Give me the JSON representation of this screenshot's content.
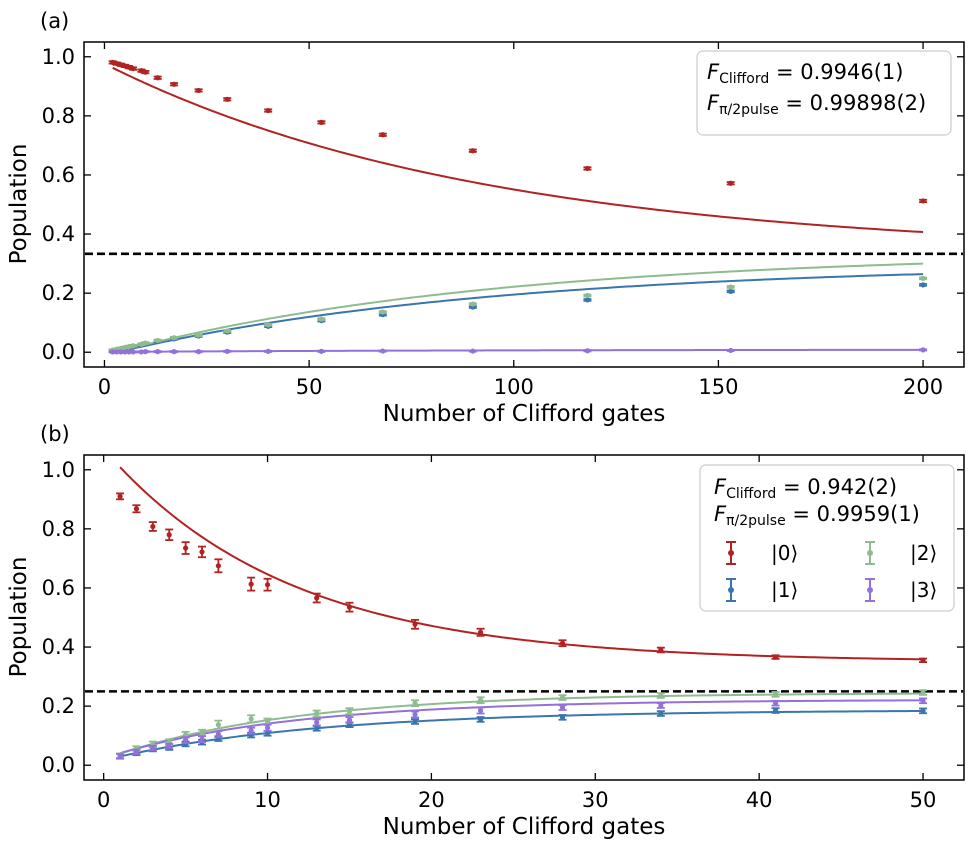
{
  "chart_data": [
    {
      "type": "scatter",
      "panel_label": "(a)",
      "xlabel": "Number of Clifford gates",
      "ylabel": "Population",
      "xlim": [
        -5,
        210
      ],
      "ylim": [
        -0.05,
        1.05
      ],
      "xticks": [
        0,
        50,
        100,
        150,
        200
      ],
      "xtick_labels": [
        "0",
        "50",
        "100",
        "150",
        "200"
      ],
      "yticks": [
        0.0,
        0.2,
        0.4,
        0.6,
        0.8,
        1.0
      ],
      "ytick_labels": [
        "0.0",
        "0.2",
        "0.4",
        "0.6",
        "0.8",
        "1.0"
      ],
      "dashed_line_y": 0.333,
      "fidelity": {
        "clifford_sym": "F",
        "clifford_sub": "Clifford",
        "clifford_value": " = 0.9946(1)",
        "pulse_sym": "F",
        "pulse_sub": "π/2pulse",
        "pulse_value": " = 0.99898(2)"
      },
      "x": [
        2,
        3,
        4,
        5,
        6,
        7,
        9,
        10,
        13,
        17,
        23,
        30,
        40,
        53,
        68,
        90,
        118,
        153,
        200
      ],
      "series": [
        {
          "name": "|0⟩",
          "color": "#b22222",
          "fit_a": 0.6434,
          "fit_p": 0.98923,
          "fit_b": 0.333,
          "values": [
            0.981,
            0.977,
            0.973,
            0.969,
            0.965,
            0.96,
            0.953,
            0.948,
            0.929,
            0.907,
            0.886,
            0.856,
            0.818,
            0.778,
            0.736,
            0.682,
            0.622,
            0.572,
            0.512
          ],
          "errors": [
            0.004,
            0.004,
            0.004,
            0.004,
            0.004,
            0.004,
            0.004,
            0.004,
            0.004,
            0.004,
            0.004,
            0.004,
            0.004,
            0.004,
            0.004,
            0.004,
            0.004,
            0.004,
            0.004
          ]
        },
        {
          "name": "|1⟩",
          "color": "#3a75ae",
          "fit_a": -0.31,
          "fit_p": 0.98923,
          "fit_b": 0.3,
          "values": [
            0.006,
            0.009,
            0.011,
            0.014,
            0.017,
            0.02,
            0.024,
            0.028,
            0.036,
            0.045,
            0.055,
            0.068,
            0.088,
            0.107,
            0.127,
            0.153,
            0.177,
            0.206,
            0.228
          ],
          "errors": [
            0.003,
            0.003,
            0.003,
            0.003,
            0.003,
            0.003,
            0.003,
            0.003,
            0.003,
            0.003,
            0.003,
            0.003,
            0.003,
            0.003,
            0.003,
            0.003,
            0.003,
            0.003,
            0.003
          ]
        },
        {
          "name": "|2⟩",
          "color": "#8fbc8f",
          "fit_a": -0.35,
          "fit_p": 0.98923,
          "fit_b": 0.34,
          "values": [
            0.007,
            0.01,
            0.013,
            0.016,
            0.019,
            0.022,
            0.027,
            0.031,
            0.04,
            0.049,
            0.058,
            0.072,
            0.093,
            0.112,
            0.136,
            0.163,
            0.192,
            0.221,
            0.25
          ],
          "errors": [
            0.003,
            0.003,
            0.003,
            0.003,
            0.003,
            0.003,
            0.003,
            0.003,
            0.003,
            0.003,
            0.003,
            0.003,
            0.003,
            0.003,
            0.003,
            0.003,
            0.003,
            0.003,
            0.003
          ]
        },
        {
          "name": "|3⟩",
          "color": "#9370db",
          "fit_a": -0.008,
          "fit_p": 0.98923,
          "fit_b": 0.009,
          "values": [
            0.001,
            0.001,
            0.001,
            0.001,
            0.001,
            0.001,
            0.001,
            0.002,
            0.002,
            0.002,
            0.002,
            0.003,
            0.003,
            0.003,
            0.004,
            0.004,
            0.005,
            0.006,
            0.008
          ],
          "errors": [
            0.002,
            0.002,
            0.002,
            0.002,
            0.002,
            0.002,
            0.002,
            0.002,
            0.002,
            0.002,
            0.002,
            0.002,
            0.002,
            0.002,
            0.002,
            0.002,
            0.002,
            0.002,
            0.002
          ]
        }
      ]
    },
    {
      "type": "scatter",
      "panel_label": "(b)",
      "xlabel": "Number of Clifford gates",
      "ylabel": "Population",
      "xlim": [
        -1.2,
        52.5
      ],
      "ylim": [
        -0.05,
        1.05
      ],
      "xticks": [
        0,
        10,
        20,
        30,
        40,
        50
      ],
      "xtick_labels": [
        "0",
        "10",
        "20",
        "30",
        "40",
        "50"
      ],
      "yticks": [
        0.0,
        0.2,
        0.4,
        0.6,
        0.8,
        1.0
      ],
      "ytick_labels": [
        "0.0",
        "0.2",
        "0.4",
        "0.6",
        "0.8",
        "1.0"
      ],
      "dashed_line_y": 0.25,
      "fidelity": {
        "clifford_sym": "F",
        "clifford_sub": "Clifford",
        "clifford_value": " = 0.942(2)",
        "pulse_sym": "F",
        "pulse_sub": "π/2pulse",
        "pulse_value": " = 0.9959(1)"
      },
      "x": [
        1,
        2,
        3,
        4,
        5,
        6,
        7,
        9,
        10,
        13,
        15,
        19,
        23,
        28,
        34,
        41,
        50
      ],
      "series": [
        {
          "name": "|0⟩",
          "color": "#b22222",
          "fit_a": 0.72,
          "fit_p": 0.915,
          "fit_b": 0.35,
          "values": [
            0.91,
            0.868,
            0.808,
            0.78,
            0.735,
            0.722,
            0.675,
            0.613,
            0.611,
            0.566,
            0.535,
            0.477,
            0.45,
            0.413,
            0.39,
            0.366,
            0.355
          ],
          "errors": [
            0.01,
            0.012,
            0.015,
            0.018,
            0.02,
            0.018,
            0.022,
            0.022,
            0.02,
            0.015,
            0.015,
            0.015,
            0.012,
            0.01,
            0.008,
            0.006,
            0.006
          ]
        },
        {
          "name": "|1⟩",
          "color": "#3a75ae",
          "fit_a": -0.17,
          "fit_p": 0.925,
          "fit_b": 0.187,
          "values": [
            0.032,
            0.042,
            0.055,
            0.06,
            0.072,
            0.078,
            0.09,
            0.102,
            0.108,
            0.125,
            0.137,
            0.148,
            0.155,
            0.162,
            0.175,
            0.185,
            0.184
          ],
          "errors": [
            0.008,
            0.008,
            0.008,
            0.008,
            0.008,
            0.008,
            0.008,
            0.008,
            0.008,
            0.008,
            0.008,
            0.008,
            0.008,
            0.008,
            0.008,
            0.008,
            0.008
          ]
        },
        {
          "name": "|2⟩",
          "color": "#8fbc8f",
          "fit_a": -0.225,
          "fit_p": 0.915,
          "fit_b": 0.245,
          "values": [
            0.032,
            0.056,
            0.07,
            0.078,
            0.103,
            0.11,
            0.137,
            0.157,
            0.148,
            0.175,
            0.183,
            0.21,
            0.22,
            0.229,
            0.236,
            0.24,
            0.246
          ],
          "errors": [
            0.008,
            0.008,
            0.01,
            0.01,
            0.01,
            0.01,
            0.014,
            0.012,
            0.01,
            0.01,
            0.01,
            0.01,
            0.01,
            0.008,
            0.008,
            0.008,
            0.008
          ]
        },
        {
          "name": "|3⟩",
          "color": "#9370db",
          "fit_a": -0.198,
          "fit_p": 0.915,
          "fit_b": 0.222,
          "values": [
            0.03,
            0.045,
            0.058,
            0.065,
            0.085,
            0.088,
            0.105,
            0.117,
            0.127,
            0.145,
            0.153,
            0.172,
            0.185,
            0.195,
            0.202,
            0.21,
            0.218
          ],
          "errors": [
            0.008,
            0.008,
            0.008,
            0.008,
            0.01,
            0.01,
            0.01,
            0.01,
            0.01,
            0.01,
            0.01,
            0.01,
            0.01,
            0.008,
            0.008,
            0.008,
            0.008
          ]
        }
      ]
    }
  ]
}
